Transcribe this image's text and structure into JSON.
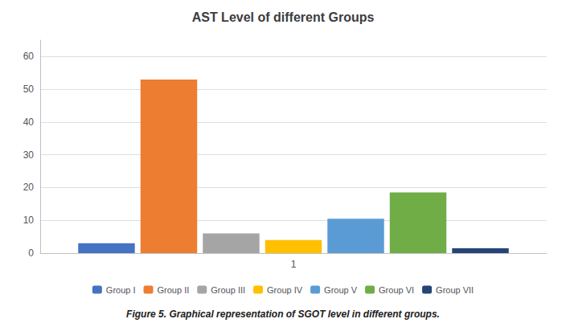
{
  "chart_data": {
    "type": "bar",
    "title": "AST Level of different Groups",
    "categories": [
      "1"
    ],
    "series": [
      {
        "name": "Group I",
        "color": "#4472c4",
        "values": [
          3
        ]
      },
      {
        "name": "Group II",
        "color": "#ed7d31",
        "values": [
          53
        ]
      },
      {
        "name": "Group III",
        "color": "#a5a5a5",
        "values": [
          6
        ]
      },
      {
        "name": "Group IV",
        "color": "#ffc000",
        "values": [
          4
        ]
      },
      {
        "name": "Group V",
        "color": "#5b9bd5",
        "values": [
          10.5
        ]
      },
      {
        "name": "Group VI",
        "color": "#70ad47",
        "values": [
          18.5
        ]
      },
      {
        "name": "Group VII",
        "color": "#264478",
        "values": [
          1.5
        ]
      }
    ],
    "ylim": [
      0,
      65
    ],
    "yticks": [
      0,
      10,
      20,
      30,
      40,
      50,
      60
    ],
    "grid": true,
    "legend": "bottom",
    "caption": "Figure 5. Graphical representation of SGOT level in different groups."
  }
}
